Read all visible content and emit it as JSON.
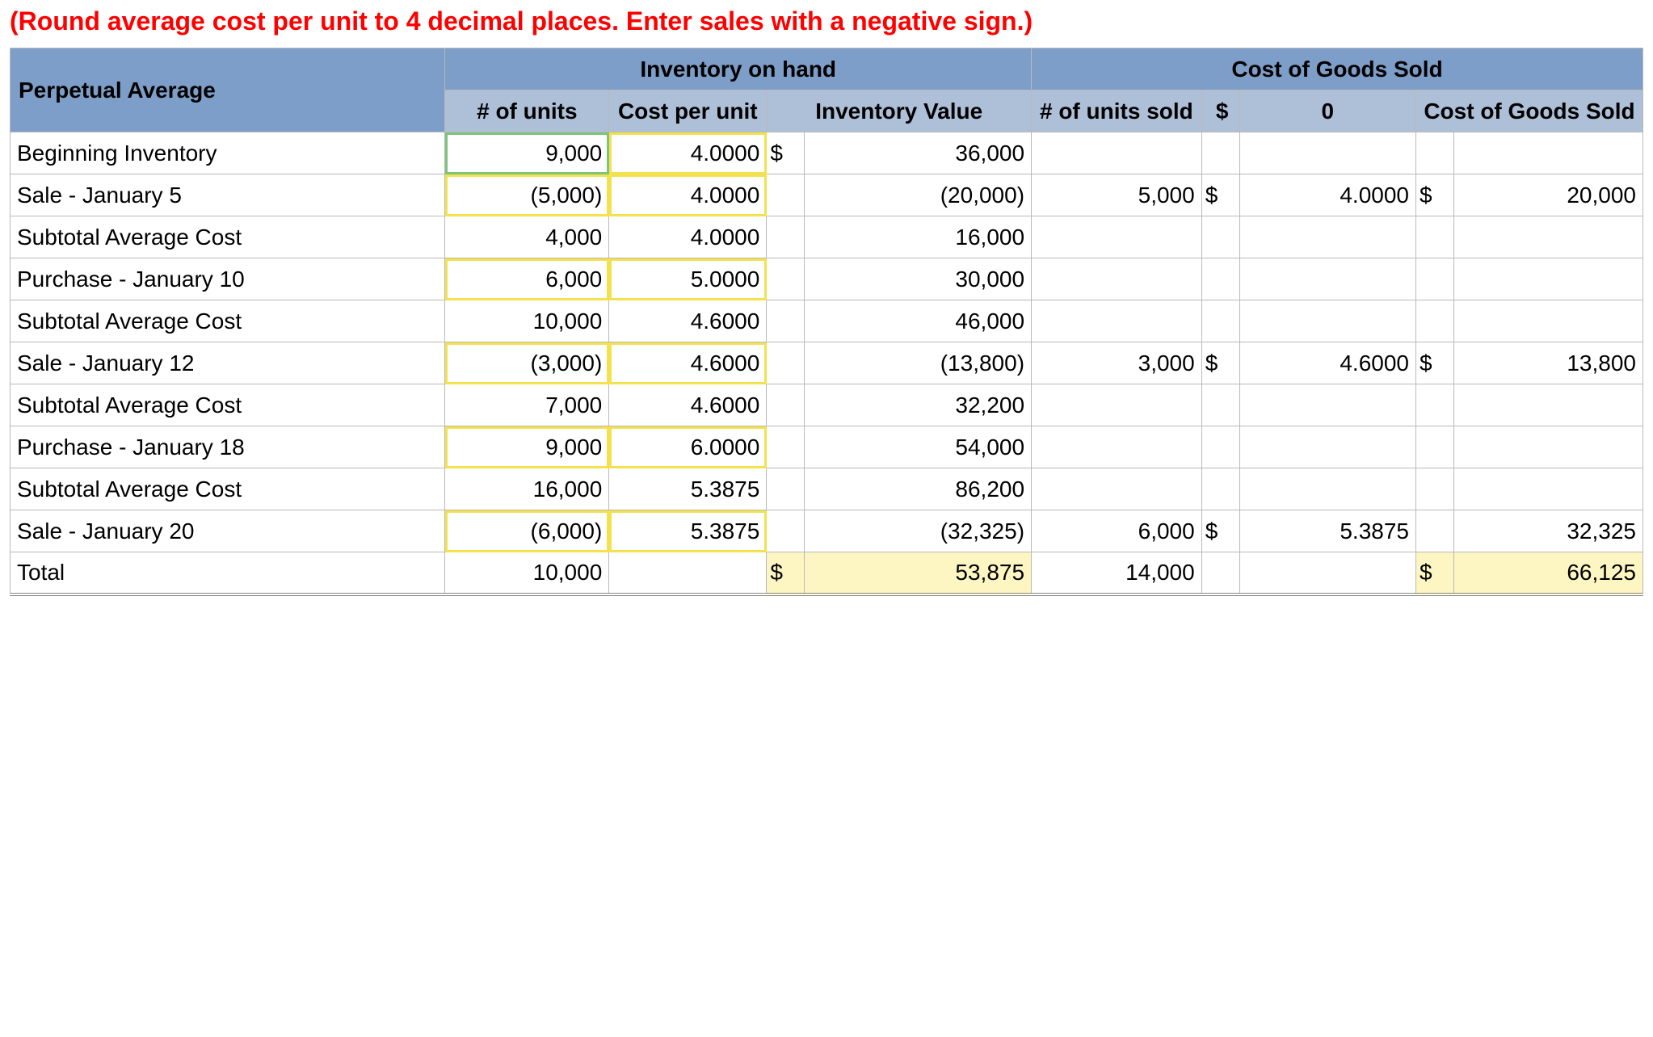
{
  "instruction": "(Round average cost per unit to 4 decimal places. Enter sales with a negative sign.)",
  "headers": {
    "row_title": "Perpetual Average",
    "group_inventory": "Inventory on hand",
    "group_cogs": "Cost of Goods Sold",
    "units": "# of units",
    "cost_per_unit": "Cost per unit",
    "inventory_value": "Inventory Value",
    "units_sold": "# of units sold",
    "rate_sym": "$",
    "rate_val": "0",
    "cogs": "Cost of Goods Sold"
  },
  "rows": [
    {
      "label": "Beginning Inventory",
      "units": "9,000",
      "units_hl": "green",
      "cpu": "4.0000",
      "cpu_hl": "yellow",
      "inv_sym": "$",
      "inv": "36,000",
      "sold": "",
      "rate_sym": "",
      "rate": "",
      "cogs_sym": "",
      "cogs": ""
    },
    {
      "label": "Sale - January 5",
      "units": "(5,000)",
      "units_hl": "yellow",
      "cpu": "4.0000",
      "cpu_hl": "yellow",
      "inv_sym": "",
      "inv": "(20,000)",
      "sold": "5,000",
      "rate_sym": "$",
      "rate": "4.0000",
      "cogs_sym": "$",
      "cogs": "20,000"
    },
    {
      "label": "Subtotal Average Cost",
      "units": "4,000",
      "units_hl": "",
      "cpu": "4.0000",
      "cpu_hl": "",
      "inv_sym": "",
      "inv": "16,000",
      "sold": "",
      "rate_sym": "",
      "rate": "",
      "cogs_sym": "",
      "cogs": ""
    },
    {
      "label": "Purchase - January 10",
      "units": "6,000",
      "units_hl": "yellow",
      "cpu": "5.0000",
      "cpu_hl": "yellow",
      "inv_sym": "",
      "inv": "30,000",
      "sold": "",
      "rate_sym": "",
      "rate": "",
      "cogs_sym": "",
      "cogs": ""
    },
    {
      "label": "Subtotal Average Cost",
      "units": "10,000",
      "units_hl": "",
      "cpu": "4.6000",
      "cpu_hl": "",
      "inv_sym": "",
      "inv": "46,000",
      "sold": "",
      "rate_sym": "",
      "rate": "",
      "cogs_sym": "",
      "cogs": ""
    },
    {
      "label": "Sale - January 12",
      "units": "(3,000)",
      "units_hl": "yellow",
      "cpu": "4.6000",
      "cpu_hl": "yellow",
      "inv_sym": "",
      "inv": "(13,800)",
      "sold": "3,000",
      "rate_sym": "$",
      "rate": "4.6000",
      "cogs_sym": "$",
      "cogs": "13,800"
    },
    {
      "label": "Subtotal Average Cost",
      "units": "7,000",
      "units_hl": "",
      "cpu": "4.6000",
      "cpu_hl": "",
      "inv_sym": "",
      "inv": "32,200",
      "sold": "",
      "rate_sym": "",
      "rate": "",
      "cogs_sym": "",
      "cogs": ""
    },
    {
      "label": "Purchase - January 18",
      "units": "9,000",
      "units_hl": "yellow",
      "cpu": "6.0000",
      "cpu_hl": "yellow",
      "inv_sym": "",
      "inv": "54,000",
      "sold": "",
      "rate_sym": "",
      "rate": "",
      "cogs_sym": "",
      "cogs": ""
    },
    {
      "label": "Subtotal Average Cost",
      "units": "16,000",
      "units_hl": "",
      "cpu": "5.3875",
      "cpu_hl": "",
      "inv_sym": "",
      "inv": "86,200",
      "sold": "",
      "rate_sym": "",
      "rate": "",
      "cogs_sym": "",
      "cogs": ""
    },
    {
      "label": "Sale - January 20",
      "units": "(6,000)",
      "units_hl": "yellow",
      "cpu": "5.3875",
      "cpu_hl": "yellow",
      "inv_sym": "",
      "inv": "(32,325)",
      "sold": "6,000",
      "rate_sym": "$",
      "rate": "5.3875",
      "cogs_sym": "",
      "cogs": "32,325"
    }
  ],
  "total": {
    "label": "Total",
    "units": "10,000",
    "cpu": "",
    "inv_sym": "$",
    "inv": "53,875",
    "inv_fill": true,
    "sold": "14,000",
    "rate_sym": "",
    "rate": "",
    "cogs_sym": "$",
    "cogs": "66,125",
    "cogs_fill": true
  },
  "style": {
    "header_dark_bg": "#7d9ec8",
    "header_light_bg": "#aebfd8",
    "border_color": "#b9b9b9",
    "green_outline": "#7cc47c",
    "yellow_outline": "#f3e24d",
    "yellow_fill": "#fdf6c2",
    "instruction_color": "#ff0000",
    "font_size_body": 28,
    "font_size_instruction": 32
  }
}
